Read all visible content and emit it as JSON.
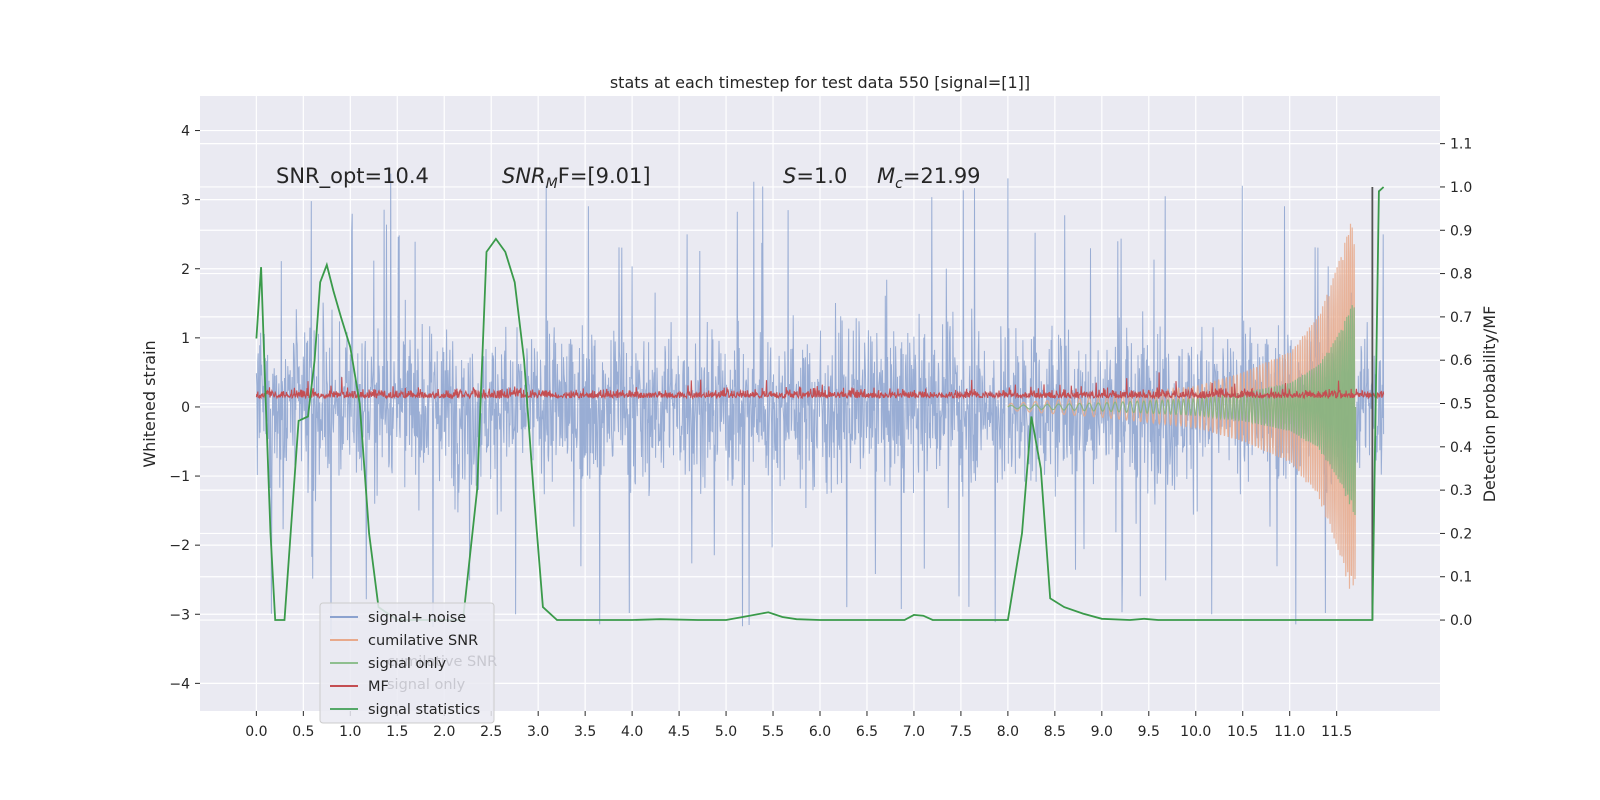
{
  "chart_data": {
    "type": "line",
    "title": "stats at each timestep for test data 550 [signal=[1]]",
    "xlabel": "",
    "ylabel": "Whitened strain",
    "ylabel_right": "Detection probability/MF",
    "xlim": [
      -0.6,
      12.6
    ],
    "ylim": [
      -4.4,
      4.5
    ],
    "ylim_right": [
      -0.21,
      1.21
    ],
    "x_ticks": [
      0.0,
      0.5,
      1.0,
      1.5,
      2.0,
      2.5,
      3.0,
      3.5,
      4.0,
      4.5,
      5.0,
      5.5,
      6.0,
      6.5,
      7.0,
      7.5,
      8.0,
      8.5,
      9.0,
      9.5,
      10.0,
      10.5,
      11.0,
      11.5
    ],
    "x_tick_labels": [
      "0.0",
      "0.5",
      "1.0",
      "1.5",
      "2.0",
      "2.5",
      "3.0",
      "3.5",
      "4.0",
      "4.5",
      "5.0",
      "5.5",
      "6.0",
      "6.5",
      "7.0",
      "7.5",
      "8.0",
      "8.5",
      "9.0",
      "9.5",
      "10.0",
      "10.5",
      "11.0",
      "11.5"
    ],
    "y_ticks": [
      -4,
      -3,
      -2,
      -1,
      0,
      1,
      2,
      3,
      4
    ],
    "y_tick_labels": [
      "−4",
      "−3",
      "−2",
      "−1",
      "0",
      "1",
      "2",
      "3",
      "4"
    ],
    "y_ticks_right": [
      0.0,
      0.1,
      0.2,
      0.3,
      0.4,
      0.5,
      0.6,
      0.7,
      0.8,
      0.9,
      1.0,
      1.1
    ],
    "y_tick_labels_right": [
      "0.0",
      "0.1",
      "0.2",
      "0.3",
      "0.4",
      "0.5",
      "0.6",
      "0.7",
      "0.8",
      "0.9",
      "1.0",
      "1.1"
    ],
    "grid": true,
    "legend_position": "lower-left",
    "legend": [
      {
        "label": "signal+ noise",
        "color": "#8ba2cf"
      },
      {
        "label": "cumilative SNR",
        "color": "#e8a98b"
      },
      {
        "label": "signal only",
        "color": "#8fbf8f"
      },
      {
        "label": "MF",
        "color": "#c44e52"
      },
      {
        "label": "signal statistics",
        "color": "#55a868"
      }
    ],
    "ghost_legend": [
      "cumilative SNR",
      "signal only"
    ],
    "annotations": [
      {
        "id": "snr_opt",
        "text": "SNR_opt=10.4"
      },
      {
        "id": "snr_mf",
        "base": "SNR",
        "sub": "M",
        "rest": "F=[9.01]"
      },
      {
        "id": "s",
        "base": "S",
        "rest": "=1.0"
      },
      {
        "id": "mc",
        "base": "M",
        "sub": "c",
        "rest": "=21.99"
      }
    ],
    "signal_noise": {
      "x_range": [
        0.0,
        12.0
      ],
      "typical_range": [
        -1.9,
        2.0
      ],
      "extreme_range": [
        -4.0,
        4.1
      ]
    },
    "cumulative_snr": {
      "x_range": [
        8.0,
        11.7
      ],
      "envelope_y": [
        [
          8.0,
          0.05
        ],
        [
          9.0,
          0.15
        ],
        [
          10.0,
          0.3
        ],
        [
          10.5,
          0.5
        ],
        [
          11.0,
          0.8
        ],
        [
          11.3,
          1.3
        ],
        [
          11.5,
          2.0
        ],
        [
          11.65,
          2.7
        ],
        [
          11.7,
          2.5
        ]
      ]
    },
    "signal_only": {
      "x_range": [
        8.0,
        11.7
      ],
      "envelope_y": [
        [
          8.0,
          0.02
        ],
        [
          9.0,
          0.06
        ],
        [
          10.0,
          0.12
        ],
        [
          10.5,
          0.2
        ],
        [
          11.0,
          0.35
        ],
        [
          11.3,
          0.6
        ],
        [
          11.5,
          1.0
        ],
        [
          11.7,
          1.6
        ]
      ]
    },
    "mf_band": {
      "x_range": [
        0.0,
        12.0
      ],
      "y_range": [
        0.0,
        0.4
      ]
    },
    "vertical_line_x": 11.88,
    "signal_statistics": {
      "x": [
        0.0,
        0.05,
        0.1,
        0.15,
        0.2,
        0.3,
        0.45,
        0.55,
        0.62,
        0.68,
        0.75,
        0.82,
        0.9,
        1.0,
        1.1,
        1.2,
        1.3,
        1.5,
        1.8,
        2.0,
        2.2,
        2.35,
        2.45,
        2.55,
        2.65,
        2.75,
        2.85,
        2.95,
        3.05,
        3.2,
        3.5,
        4.0,
        4.3,
        4.7,
        5.0,
        5.2,
        5.45,
        5.6,
        5.75,
        6.0,
        6.5,
        6.9,
        7.0,
        7.1,
        7.2,
        7.6,
        8.0,
        8.15,
        8.25,
        8.35,
        8.45,
        8.6,
        8.8,
        9.0,
        9.3,
        9.45,
        9.6,
        10.0,
        10.5,
        11.0,
        11.5,
        11.8,
        11.88,
        11.95,
        12.0
      ],
      "y": [
        0.65,
        0.815,
        0.5,
        0.2,
        0.0,
        0.0,
        0.46,
        0.47,
        0.6,
        0.78,
        0.82,
        0.76,
        0.7,
        0.63,
        0.5,
        0.2,
        0.03,
        0.0,
        0.0,
        0.0,
        0.0,
        0.3,
        0.85,
        0.88,
        0.85,
        0.78,
        0.6,
        0.3,
        0.03,
        0.0,
        0.0,
        0.0,
        0.002,
        0.0,
        0.0,
        0.008,
        0.018,
        0.007,
        0.002,
        0.0,
        0.0,
        0.0,
        0.012,
        0.01,
        0.0,
        0.0,
        0.0,
        0.2,
        0.47,
        0.35,
        0.05,
        0.03,
        0.015,
        0.003,
        0.0,
        0.003,
        0.0,
        0.0,
        0.0,
        0.0,
        0.0,
        0.0,
        0.0,
        0.99,
        1.0
      ]
    }
  }
}
